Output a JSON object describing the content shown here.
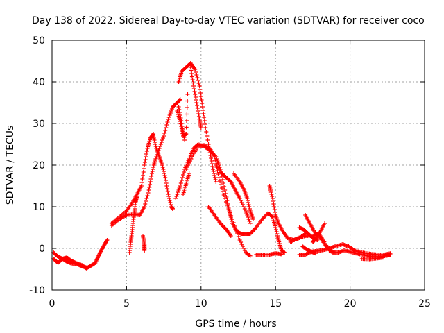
{
  "chart_data": {
    "type": "scatter",
    "title": "Day 138 of 2022, Sidereal Day-to-day VTEC variation (SDTVAR) for receiver coco",
    "xlabel": "GPS time / hours",
    "ylabel": "SDTVAR / TECUs",
    "xlim": [
      0,
      25
    ],
    "ylim": [
      -10,
      50
    ],
    "xticks": [
      "0",
      "5",
      "10",
      "15",
      "20",
      "25"
    ],
    "yticks": [
      "-10",
      "0",
      "10",
      "20",
      "30",
      "40",
      "50"
    ],
    "grid": true,
    "marker": "+",
    "series": [
      {
        "name": "track-01",
        "color": "#ff0000",
        "points": [
          [
            0.1,
            -1
          ],
          [
            0.4,
            -2
          ],
          [
            0.7,
            -2.5
          ],
          [
            1.0,
            -2.2
          ],
          [
            1.3,
            -3
          ],
          [
            1.6,
            -3.5
          ],
          [
            2.0,
            -4
          ],
          [
            2.3,
            -4.8
          ],
          [
            2.6,
            -4.2
          ],
          [
            2.9,
            -3.5
          ],
          [
            3.1,
            -2
          ],
          [
            3.3,
            -0.5
          ],
          [
            3.5,
            0.8
          ],
          [
            3.7,
            2
          ]
        ]
      },
      {
        "name": "track-02",
        "color": "#ff0000",
        "points": [
          [
            0.1,
            -2.5
          ],
          [
            0.4,
            -3.5
          ],
          [
            0.7,
            -2.5
          ],
          [
            1.0,
            -3.2
          ],
          [
            1.3,
            -3.6
          ],
          [
            1.7,
            -3.8
          ],
          [
            2.0,
            -4.3
          ],
          [
            2.3,
            -4.6
          ]
        ]
      },
      {
        "name": "track-03",
        "color": "#ff0000",
        "points": [
          [
            4.0,
            5.5
          ],
          [
            4.5,
            7
          ],
          [
            5.0,
            8
          ],
          [
            5.5,
            8.2
          ],
          [
            5.9,
            8
          ],
          [
            6.2,
            10
          ],
          [
            6.5,
            14
          ],
          [
            6.7,
            18
          ],
          [
            6.9,
            21
          ],
          [
            7.2,
            24
          ],
          [
            7.5,
            27
          ],
          [
            7.8,
            31
          ],
          [
            8.1,
            34
          ],
          [
            8.4,
            35
          ],
          [
            8.6,
            35.8
          ]
        ]
      },
      {
        "name": "track-04",
        "color": "#ff0000",
        "points": [
          [
            4.0,
            6
          ],
          [
            4.5,
            7.5
          ],
          [
            5.0,
            9
          ],
          [
            5.4,
            11
          ],
          [
            5.7,
            13
          ],
          [
            6.0,
            15
          ],
          [
            6.2,
            20
          ],
          [
            6.4,
            24
          ],
          [
            6.6,
            26.5
          ],
          [
            6.8,
            27.5
          ]
        ]
      },
      {
        "name": "track-05",
        "color": "#ff0000",
        "points": [
          [
            6.8,
            27
          ],
          [
            7.0,
            24
          ],
          [
            7.2,
            22
          ],
          [
            7.4,
            20
          ],
          [
            7.6,
            17
          ],
          [
            7.8,
            13
          ],
          [
            8.0,
            10
          ],
          [
            8.1,
            9.5
          ]
        ]
      },
      {
        "name": "track-06",
        "color": "#ff0000",
        "points": [
          [
            8.5,
            34
          ],
          [
            8.7,
            30
          ],
          [
            8.9,
            26
          ]
        ]
      },
      {
        "name": "track-07",
        "color": "#ff0000",
        "points": [
          [
            8.5,
            40
          ],
          [
            8.7,
            42.5
          ],
          [
            9.0,
            43.5
          ],
          [
            9.3,
            44.5
          ],
          [
            9.6,
            43
          ],
          [
            9.9,
            39
          ],
          [
            10.1,
            34
          ],
          [
            10.3,
            29
          ],
          [
            10.6,
            23
          ],
          [
            10.8,
            19
          ],
          [
            11.0,
            16
          ]
        ]
      },
      {
        "name": "track-08",
        "color": "#ff0000",
        "points": [
          [
            9.3,
            43.5
          ],
          [
            9.5,
            39
          ],
          [
            9.7,
            35
          ],
          [
            9.9,
            31
          ],
          [
            10.0,
            29
          ]
        ]
      },
      {
        "name": "track-09",
        "color": "#ff0000",
        "points": [
          [
            8.3,
            12
          ],
          [
            8.6,
            15
          ],
          [
            8.9,
            19
          ],
          [
            9.2,
            21.5
          ],
          [
            9.5,
            24
          ],
          [
            9.8,
            25
          ],
          [
            10.2,
            24.5
          ],
          [
            10.6,
            23.5
          ],
          [
            11.0,
            22
          ],
          [
            11.3,
            19
          ],
          [
            11.6,
            14
          ],
          [
            11.9,
            9
          ],
          [
            12.1,
            6
          ],
          [
            12.4,
            4
          ],
          [
            12.7,
            3.5
          ],
          [
            13.0,
            3.5
          ],
          [
            13.3,
            3.5
          ]
        ]
      },
      {
        "name": "track-10",
        "color": "#ff0000",
        "points": [
          [
            9.0,
            19
          ],
          [
            9.4,
            22
          ],
          [
            9.8,
            24.5
          ],
          [
            10.2,
            24.8
          ],
          [
            10.6,
            24
          ],
          [
            10.9,
            22
          ],
          [
            11.2,
            17
          ],
          [
            11.6,
            12
          ],
          [
            12.1,
            7
          ],
          [
            12.6,
            2
          ],
          [
            13.0,
            -1
          ],
          [
            13.3,
            -1.8
          ]
        ]
      },
      {
        "name": "track-11",
        "color": "#ff0000",
        "points": [
          [
            10.5,
            10
          ],
          [
            10.9,
            8
          ],
          [
            11.3,
            6
          ],
          [
            11.7,
            4.5
          ],
          [
            12.0,
            3
          ]
        ]
      },
      {
        "name": "track-12",
        "color": "#ff0000",
        "points": [
          [
            11.0,
            20
          ],
          [
            11.4,
            18
          ],
          [
            11.7,
            17
          ],
          [
            12.0,
            16
          ],
          [
            12.3,
            14
          ],
          [
            12.6,
            12
          ],
          [
            13.0,
            9
          ],
          [
            13.3,
            6
          ]
        ]
      },
      {
        "name": "track-13",
        "color": "#ff0000",
        "points": [
          [
            12.2,
            18
          ],
          [
            12.6,
            16
          ],
          [
            12.9,
            14
          ],
          [
            13.1,
            12
          ],
          [
            13.3,
            9
          ],
          [
            13.5,
            7
          ]
        ]
      },
      {
        "name": "track-14",
        "color": "#ff0000",
        "points": [
          [
            13.7,
            -1.5
          ],
          [
            14.1,
            -1.5
          ],
          [
            14.6,
            -1.5
          ],
          [
            15.0,
            -1.2
          ],
          [
            15.4,
            -1.4
          ]
        ]
      },
      {
        "name": "track-15",
        "color": "#ff0000",
        "points": [
          [
            13.3,
            3.5
          ],
          [
            13.7,
            5
          ],
          [
            14.1,
            7
          ],
          [
            14.5,
            8.5
          ],
          [
            14.8,
            7.5
          ],
          [
            15.0,
            5
          ],
          [
            15.2,
            2
          ],
          [
            15.4,
            -0.5
          ],
          [
            15.6,
            -1
          ]
        ]
      },
      {
        "name": "track-16",
        "color": "#ff0000",
        "points": [
          [
            14.6,
            15
          ],
          [
            14.8,
            12
          ],
          [
            15.0,
            8
          ],
          [
            15.2,
            6
          ],
          [
            15.5,
            4
          ],
          [
            15.8,
            2.5
          ],
          [
            16.2,
            2
          ],
          [
            16.6,
            2.5
          ],
          [
            17.0,
            3.5
          ]
        ]
      },
      {
        "name": "track-17",
        "color": "#ff0000",
        "points": [
          [
            16.0,
            1.5
          ],
          [
            16.5,
            2.5
          ],
          [
            17.0,
            3
          ],
          [
            17.5,
            3
          ],
          [
            17.9,
            3.5
          ],
          [
            18.2,
            2
          ],
          [
            18.6,
            -0.5
          ],
          [
            19.0,
            -1
          ]
        ]
      },
      {
        "name": "track-18",
        "color": "#ff0000",
        "points": [
          [
            16.6,
            -1.5
          ],
          [
            17.0,
            -1.5
          ],
          [
            17.4,
            -0.8
          ],
          [
            17.8,
            -0.6
          ],
          [
            18.2,
            -0.4
          ],
          [
            18.6,
            0
          ],
          [
            19.0,
            0.5
          ],
          [
            19.5,
            1
          ],
          [
            19.9,
            0.5
          ],
          [
            20.3,
            -0.5
          ],
          [
            20.8,
            -1
          ],
          [
            21.3,
            -1.3
          ],
          [
            21.8,
            -1.5
          ],
          [
            22.3,
            -1.5
          ],
          [
            22.7,
            -1.2
          ]
        ]
      },
      {
        "name": "track-19",
        "color": "#ff0000",
        "points": [
          [
            17.0,
            8
          ],
          [
            17.3,
            6
          ],
          [
            17.6,
            4
          ],
          [
            18.0,
            2.5
          ],
          [
            18.4,
            0.5
          ],
          [
            18.8,
            -1
          ],
          [
            19.2,
            -1
          ],
          [
            19.6,
            -0.5
          ],
          [
            20.0,
            -0.8
          ],
          [
            20.4,
            -1.2
          ],
          [
            20.9,
            -1.6
          ],
          [
            21.4,
            -2
          ],
          [
            21.9,
            -2
          ],
          [
            22.4,
            -1.8
          ],
          [
            22.7,
            -1.5
          ]
        ]
      },
      {
        "name": "track-20",
        "color": "#ff0000",
        "points": [
          [
            18.3,
            6
          ],
          [
            18.0,
            4
          ],
          [
            17.7,
            2.5
          ],
          [
            17.5,
            1.5
          ]
        ]
      },
      {
        "name": "track-21",
        "color": "#ff0000",
        "points": [
          [
            16.6,
            5
          ],
          [
            16.9,
            4.5
          ],
          [
            17.2,
            3.5
          ],
          [
            17.5,
            2.5
          ],
          [
            17.8,
            2
          ]
        ]
      },
      {
        "name": "track-22",
        "color": "#ff0000",
        "points": [
          [
            16.8,
            0.5
          ],
          [
            17.1,
            -0.3
          ],
          [
            17.4,
            -0.8
          ],
          [
            17.7,
            -1.2
          ]
        ]
      },
      {
        "name": "track-23",
        "color": "#ff0000",
        "points": [
          [
            20.8,
            -2.5
          ],
          [
            21.3,
            -2.6
          ],
          [
            21.8,
            -2.4
          ],
          [
            22.2,
            -2.2
          ]
        ]
      },
      {
        "name": "track-24",
        "color": "#ff0000",
        "points": [
          [
            5.2,
            -1
          ],
          [
            5.3,
            2
          ],
          [
            5.4,
            5
          ],
          [
            5.5,
            8
          ],
          [
            5.6,
            11
          ],
          [
            5.7,
            12.5
          ]
        ]
      },
      {
        "name": "track-25",
        "color": "#ff0000",
        "points": [
          [
            6.1,
            3
          ],
          [
            6.2,
            1
          ],
          [
            6.2,
            -0.5
          ]
        ]
      },
      {
        "name": "track-26",
        "color": "#ff0000",
        "points": [
          [
            8.4,
            33
          ],
          [
            8.6,
            30.5
          ],
          [
            8.8,
            27
          ],
          [
            9.0,
            27.5
          ],
          [
            9.1,
            37
          ]
        ]
      },
      {
        "name": "track-27",
        "color": "#ff0000",
        "points": [
          [
            8.8,
            13
          ],
          [
            9.0,
            15.5
          ],
          [
            9.2,
            18
          ]
        ]
      }
    ]
  }
}
